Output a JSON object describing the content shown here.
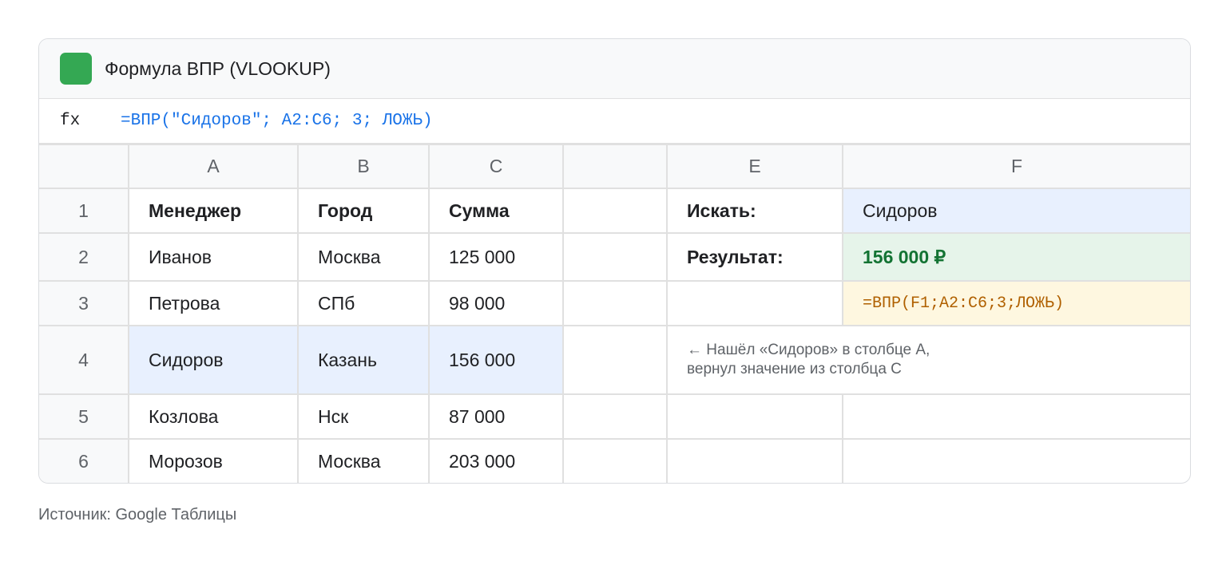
{
  "header": {
    "title": "Формула ВПР (VLOOKUP)",
    "logo_color": "#34a853"
  },
  "formula_bar": {
    "label": "fx",
    "value": "=ВПР(\"Сидоров\"; A2:C6; 3; ЛОЖЬ)"
  },
  "columns": [
    "A",
    "B",
    "C",
    "",
    "E",
    "F"
  ],
  "rows": [
    {
      "n": "1",
      "a": "Менеджер",
      "b": "Город",
      "c": "Сумма"
    },
    {
      "n": "2",
      "a": "Иванов",
      "b": "Москва",
      "c": "125 000"
    },
    {
      "n": "3",
      "a": "Петрова",
      "b": "СПб",
      "c": "98 000"
    },
    {
      "n": "4",
      "a": "Сидоров",
      "b": "Казань",
      "c": "156 000"
    },
    {
      "n": "5",
      "a": "Козлова",
      "b": "Нск",
      "c": "87 000"
    },
    {
      "n": "6",
      "a": "Морозов",
      "b": "Москва",
      "c": "203 000"
    }
  ],
  "lookup": {
    "search_label": "Искать:",
    "search_value": "Сидоров",
    "result_label": "Результат:",
    "result_value": "156 000 ₽",
    "formula": "=ВПР(F1;A2:C6;3;ЛОЖЬ)",
    "note_line1": "← Нашёл «Сидоров» в столбце A,",
    "note_line2": "вернул значение из столбца C"
  },
  "source": "Источник: Google Таблицы"
}
